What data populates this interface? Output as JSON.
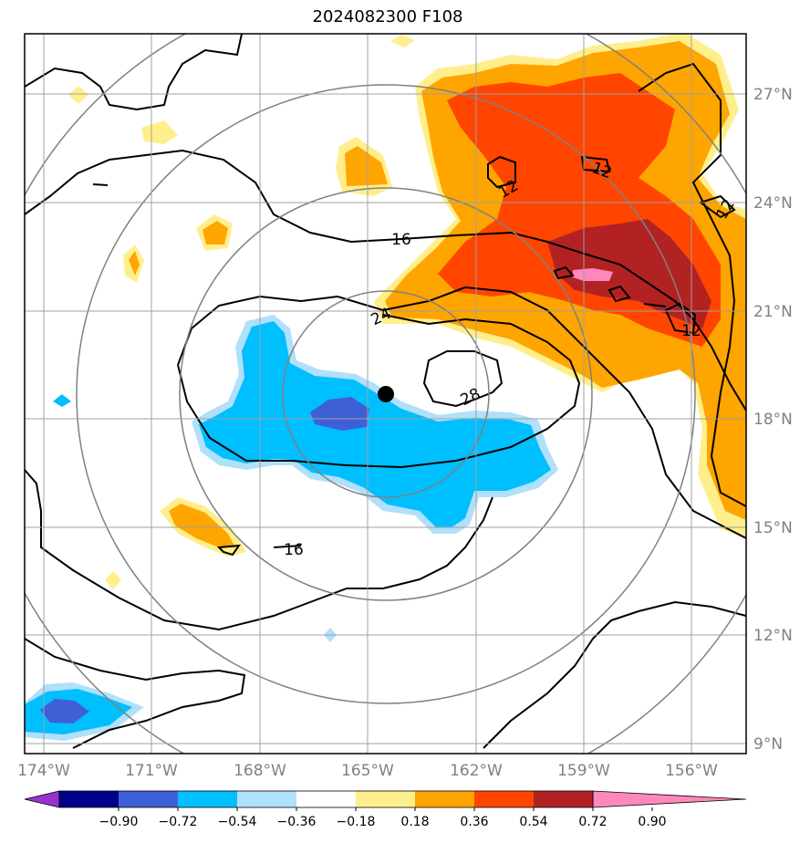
{
  "title": "2024082300 F108",
  "map": {
    "lon_labels": [
      "174°W",
      "171°W",
      "168°W",
      "165°W",
      "162°W",
      "159°W",
      "156°W"
    ],
    "lat_labels": [
      "27°N",
      "24°N",
      "21°N",
      "18°N",
      "15°N",
      "12°N",
      "9°N"
    ],
    "contour_labels": [
      "16",
      "24",
      "28",
      "12",
      "12",
      "12",
      "16",
      "12"
    ],
    "storm_center": {
      "lon": -164.5,
      "lat": 18.7
    }
  },
  "colorbar": {
    "ticks": [
      "−0.90",
      "−0.72",
      "−0.54",
      "−0.36",
      "−0.18",
      "0.18",
      "0.36",
      "0.54",
      "0.72",
      "0.90"
    ],
    "colors": [
      "#9932cc",
      "#00008b",
      "#3f5fd6",
      "#00bfff",
      "#b0e0fa",
      "#ffffff",
      "#ffee8c",
      "#ffa500",
      "#ff4500",
      "#b22222",
      "#ff88bb"
    ]
  },
  "colors": {
    "frame": "#000000",
    "grid": "#a0a0a0",
    "range_ring": "#808080",
    "contour": "#000000"
  }
}
